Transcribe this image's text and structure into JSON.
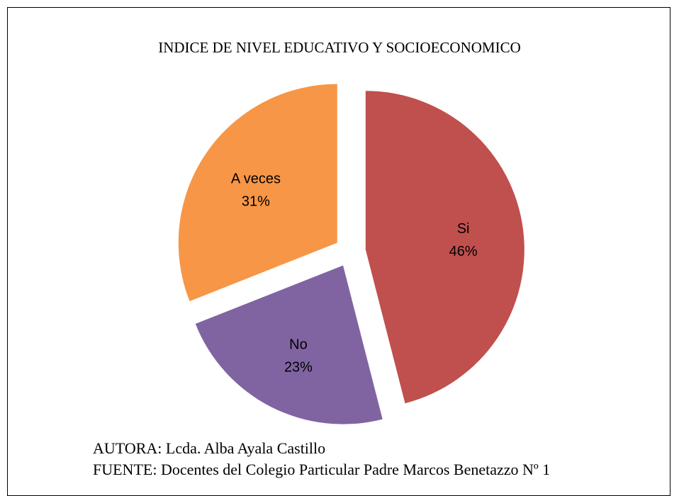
{
  "chart_data": {
    "type": "pie",
    "title": "INDICE DE NIVEL EDUCATIVO Y SOCIOECONOMICO",
    "slices": [
      {
        "name": "Si",
        "value": 46,
        "label": "46%",
        "color": "#c0504d"
      },
      {
        "name": "No",
        "value": 23,
        "label": "23%",
        "color": "#8064a2"
      },
      {
        "name": "A veces",
        "value": 31,
        "label": "31%",
        "color": "#f79646"
      }
    ],
    "exploded": true
  },
  "footer": {
    "author": "AUTORA: Lcda. Alba Ayala Castillo",
    "source": "FUENTE: Docentes del Colegio Particular Padre Marcos Benetazzo Nº 1"
  }
}
